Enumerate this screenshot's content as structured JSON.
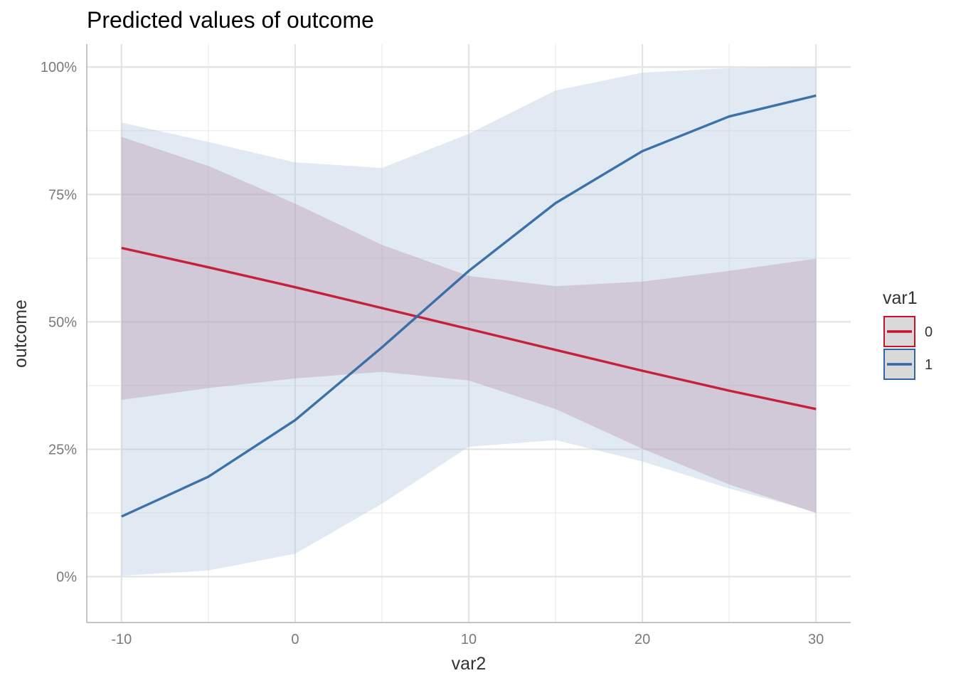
{
  "chart_data": {
    "type": "line",
    "title": "Predicted values of outcome",
    "xlabel": "var2",
    "ylabel": "outcome",
    "xlim": [
      -12,
      32
    ],
    "ylim": [
      -0.09,
      1.045
    ],
    "x_ticks": [
      -10,
      0,
      10,
      20,
      30
    ],
    "x_tick_labels": [
      "-10",
      "0",
      "10",
      "20",
      "30"
    ],
    "y_ticks": [
      0,
      0.25,
      0.5,
      0.75,
      1.0
    ],
    "y_tick_labels": [
      "0%",
      "25%",
      "50%",
      "75%",
      "100%"
    ],
    "grid": true,
    "legend": {
      "title": "var1",
      "placement": "right"
    },
    "x": [
      -10,
      -5,
      0,
      5,
      10,
      15,
      20,
      25,
      30
    ],
    "series": [
      {
        "name": "0",
        "color": "#c4122f",
        "band_color": "#a8486f",
        "values": [
          0.645,
          0.607,
          0.568,
          0.527,
          0.486,
          0.445,
          0.404,
          0.365,
          0.329
        ],
        "lower": [
          0.347,
          0.37,
          0.389,
          0.402,
          0.385,
          0.329,
          0.251,
          0.181,
          0.125
        ],
        "upper": [
          0.863,
          0.806,
          0.732,
          0.651,
          0.59,
          0.57,
          0.579,
          0.6,
          0.624
        ]
      },
      {
        "name": "1",
        "color": "#2f66a3",
        "band_color": "#b4c7de",
        "values": [
          0.118,
          0.196,
          0.307,
          0.45,
          0.6,
          0.733,
          0.835,
          0.903,
          0.944
        ],
        "lower": [
          0.002,
          0.012,
          0.045,
          0.143,
          0.255,
          0.268,
          0.226,
          0.173,
          0.127
        ],
        "upper": [
          0.891,
          0.853,
          0.813,
          0.802,
          0.869,
          0.954,
          0.989,
          0.998,
          1.0
        ]
      }
    ]
  }
}
